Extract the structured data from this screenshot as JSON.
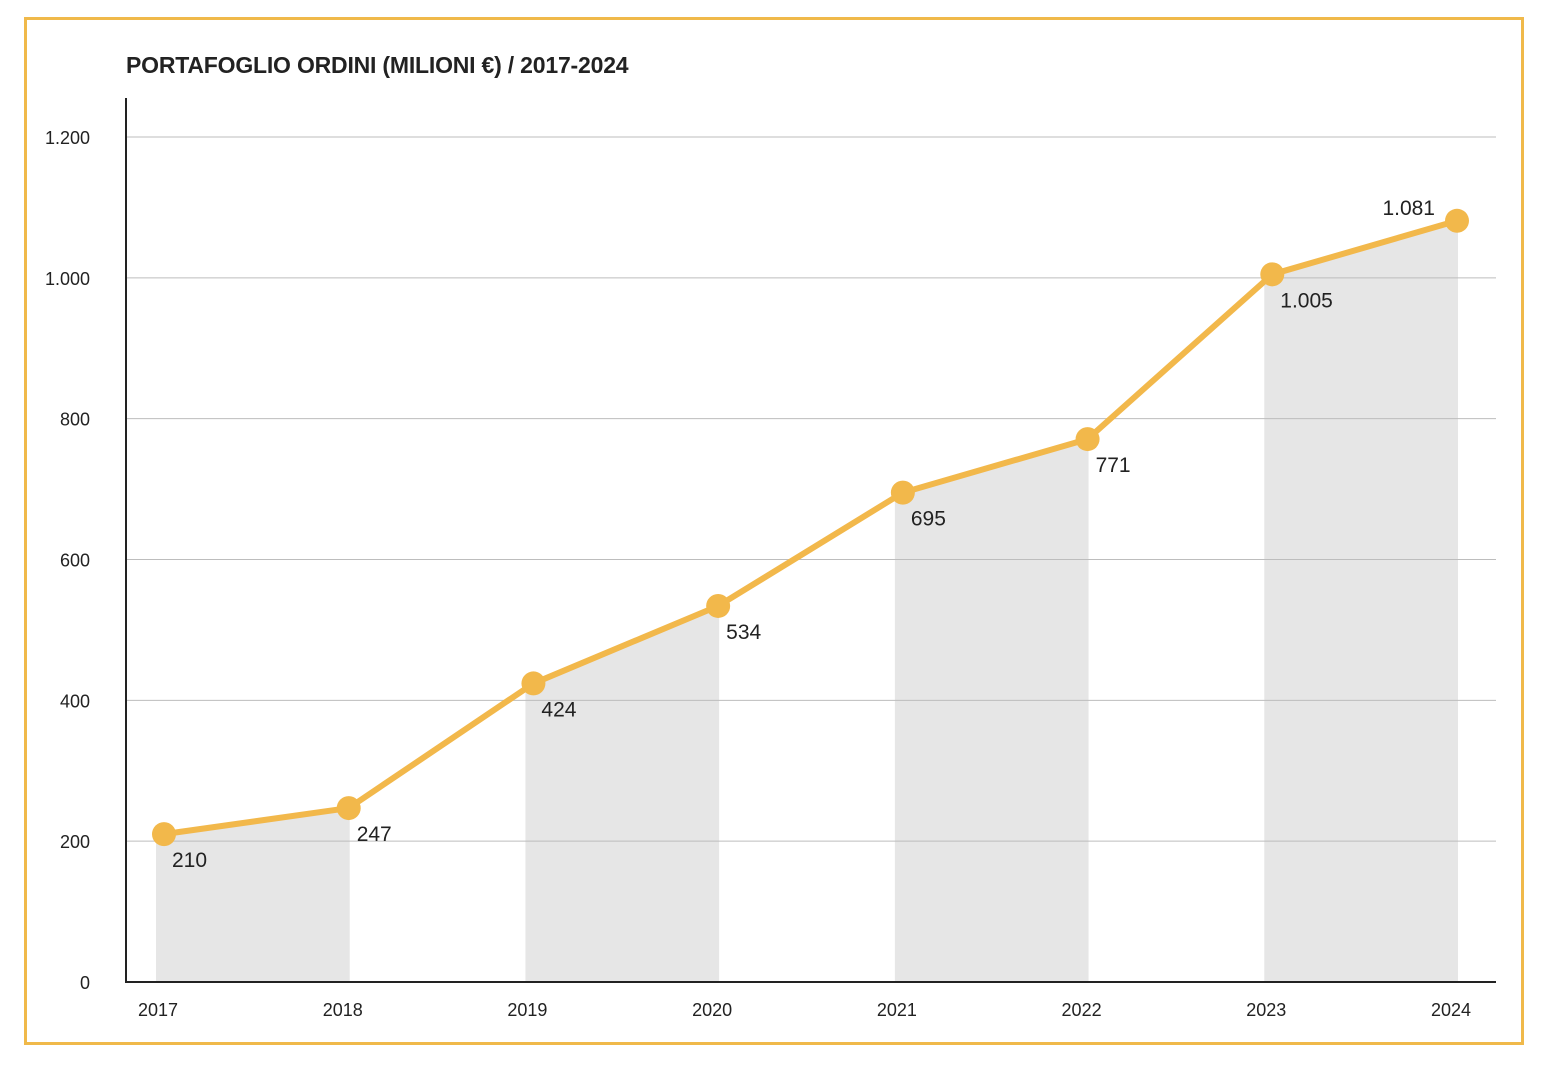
{
  "chart_data": {
    "type": "line",
    "title": "PORTAFOGLIO ORDINI (MILIONI €) / 2017-2024",
    "categories": [
      "2017",
      "2018",
      "2019",
      "2020",
      "2021",
      "2022",
      "2023",
      "2024"
    ],
    "series": [
      {
        "values": [
          210,
          247,
          424,
          534,
          695,
          771,
          1005,
          1081
        ]
      }
    ],
    "data_labels": [
      "210",
      "247",
      "424",
      "534",
      "695",
      "771",
      "1.005",
      "1.081"
    ],
    "yticks": [
      0,
      200,
      400,
      600,
      800,
      1000,
      1200
    ],
    "ytick_labels": [
      "0",
      "200",
      "400",
      "600",
      "800",
      "1.000",
      "1.200"
    ],
    "ylim": [
      0,
      1200
    ],
    "grid": true,
    "legend": "none",
    "shaded_pairs": [
      [
        "2017",
        "2018"
      ],
      [
        "2019",
        "2020"
      ],
      [
        "2021",
        "2022"
      ],
      [
        "2023",
        "2024"
      ]
    ],
    "colors": {
      "line": "#f2b84b",
      "shade": "#e6e6e6",
      "grid": "#bdbdbd",
      "border": "#f0b94a"
    }
  }
}
